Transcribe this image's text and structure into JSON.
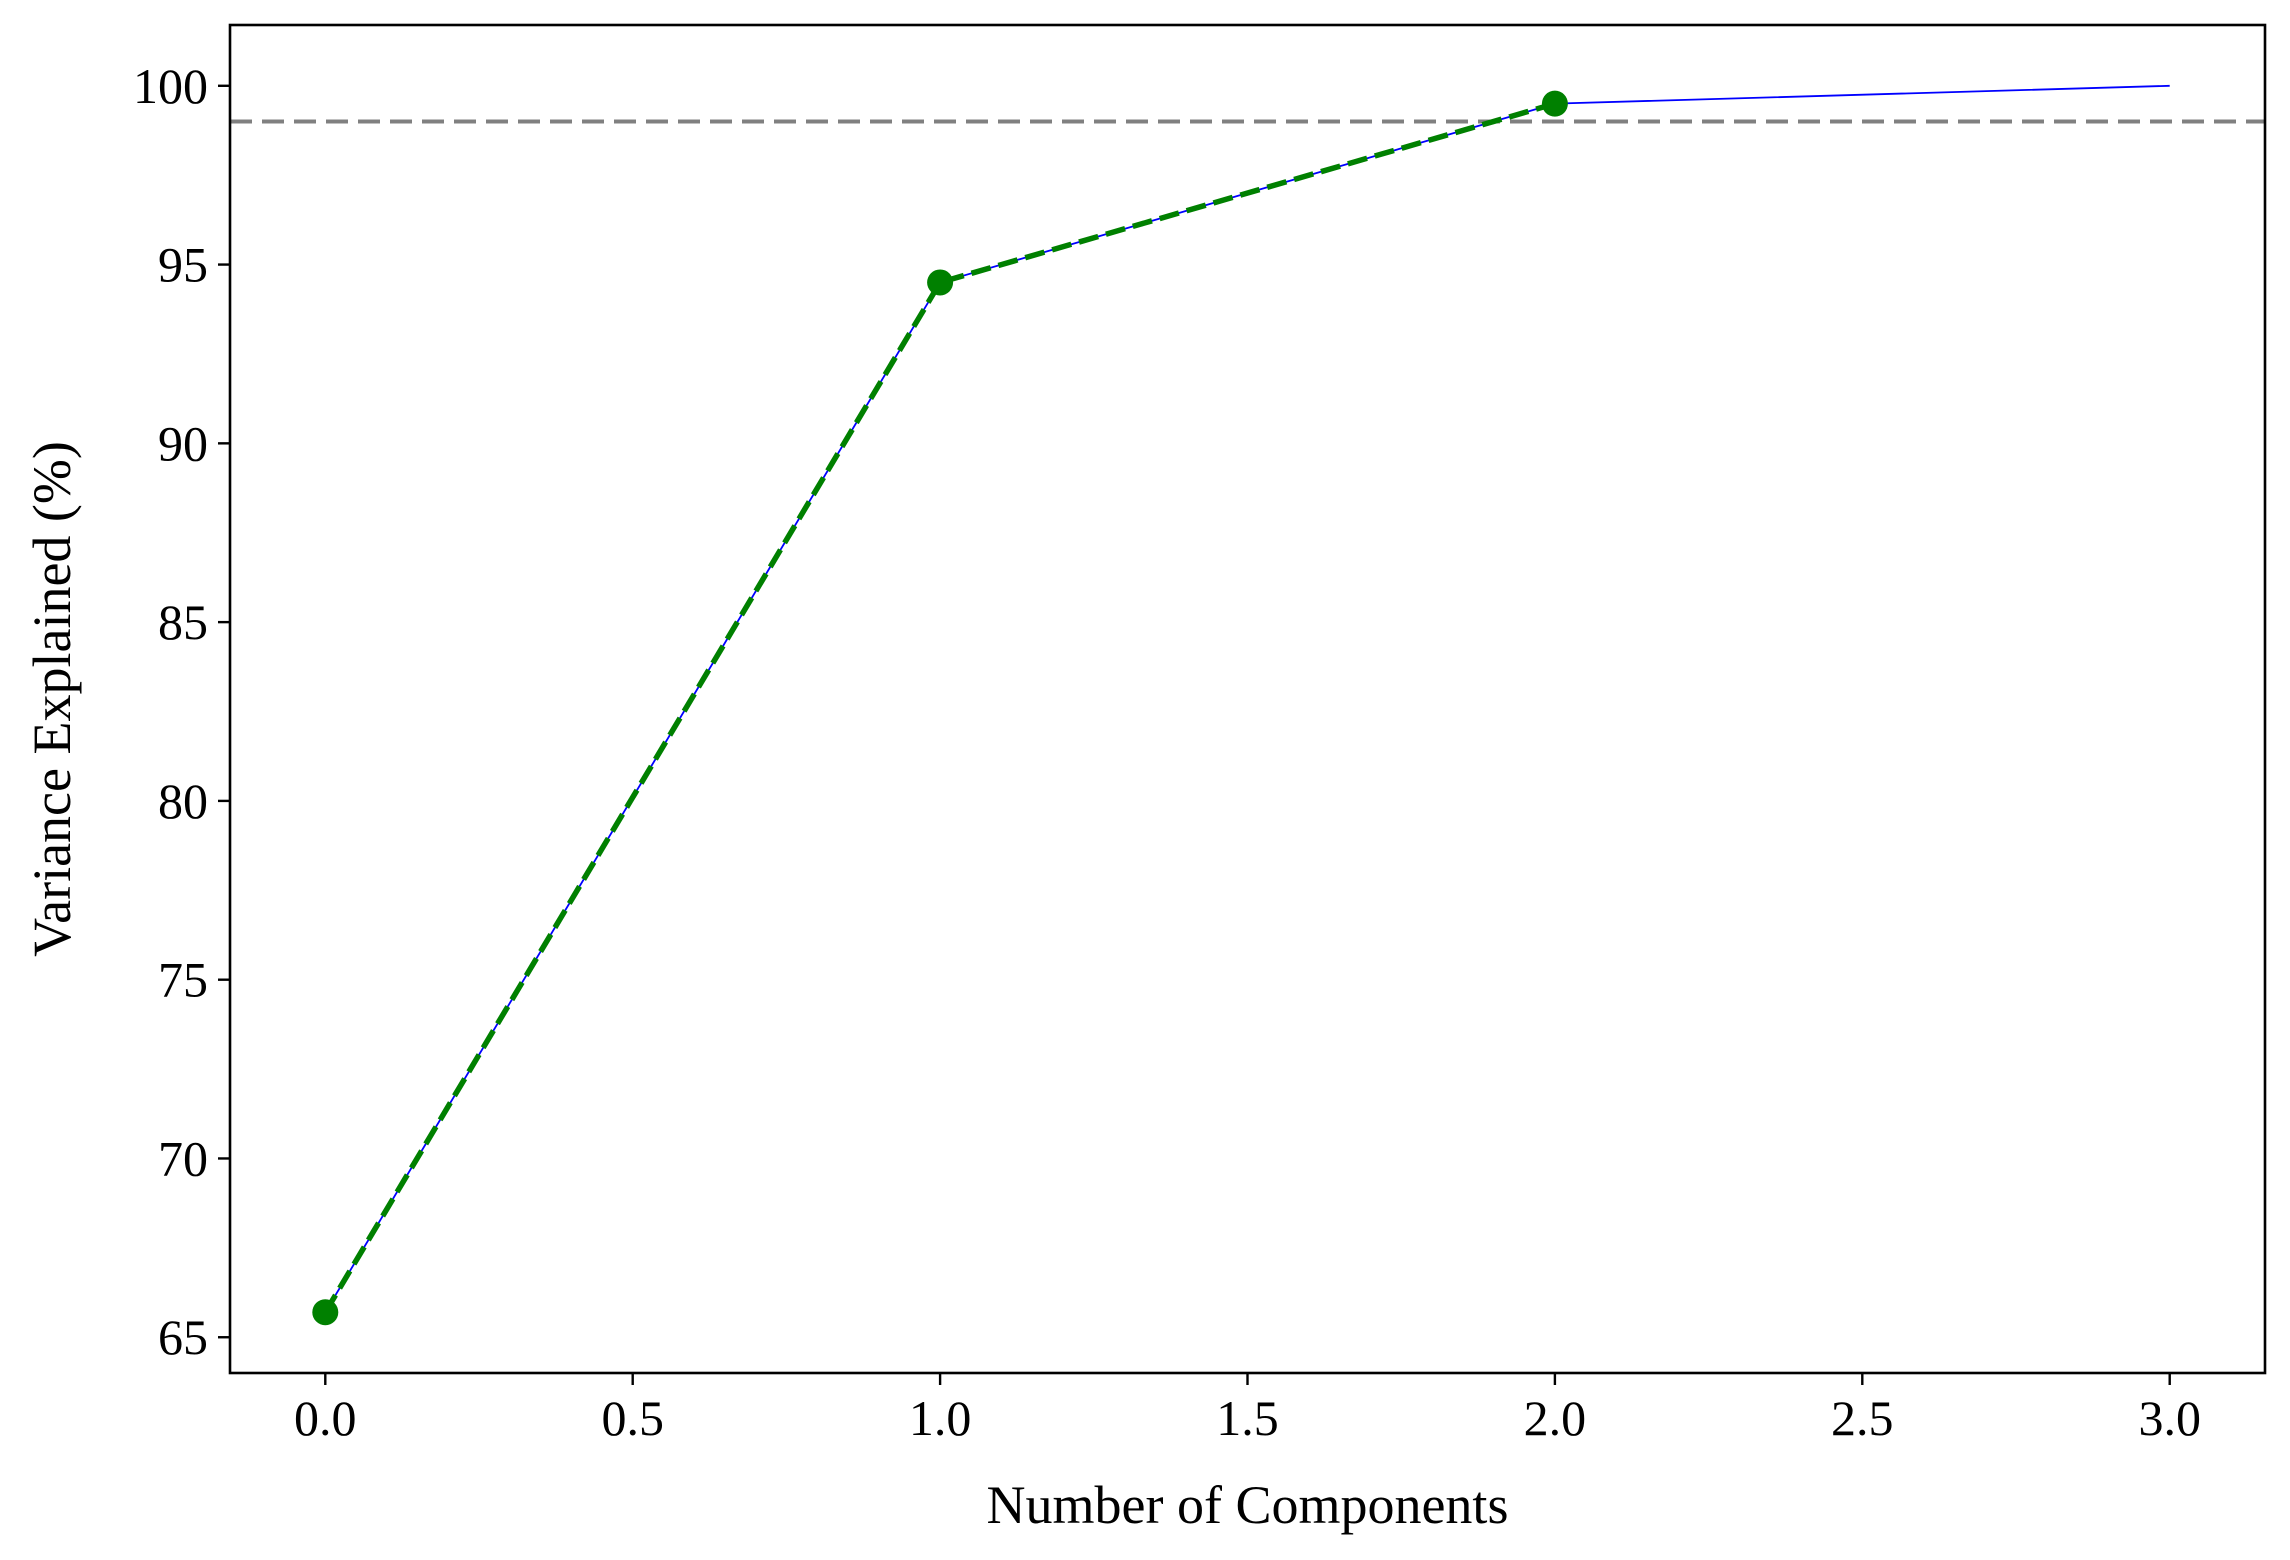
{
  "chart_data": {
    "type": "line",
    "title": "",
    "xlabel": "Number of Components",
    "ylabel": "Variance Explained (%)",
    "xlim": [
      -0.155,
      3.155
    ],
    "ylim": [
      64.0,
      101.7
    ],
    "xticks": [
      0.0,
      0.5,
      1.0,
      1.5,
      2.0,
      2.5,
      3.0
    ],
    "xtick_labels": [
      "0.0",
      "0.5",
      "1.0",
      "1.5",
      "2.0",
      "2.5",
      "3.0"
    ],
    "yticks": [
      65,
      70,
      75,
      80,
      85,
      90,
      95,
      100
    ],
    "ytick_labels": [
      "65",
      "70",
      "75",
      "80",
      "85",
      "90",
      "95",
      "100"
    ],
    "grid": false,
    "legend": "none",
    "threshold_line": {
      "y": 99,
      "color": "#808080",
      "style": "dashed"
    },
    "series": [
      {
        "x": [
          0,
          1,
          2,
          3
        ],
        "y": [
          65.7,
          94.5,
          99.5,
          100.0
        ],
        "color": "#0000ff",
        "style": "solid"
      },
      {
        "x": [
          0,
          1,
          2
        ],
        "y": [
          65.7,
          94.5,
          99.5
        ],
        "color": "#008000",
        "style": "dashed",
        "markers": true
      }
    ]
  }
}
